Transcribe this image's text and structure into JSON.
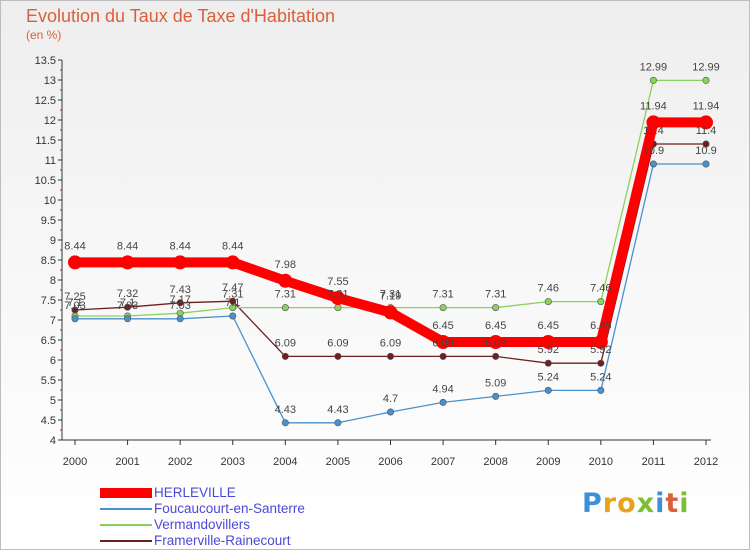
{
  "title": "Evolution du Taux de Taxe d'Habitation",
  "unit": "(en %)",
  "logo": {
    "letters": [
      "P",
      "r",
      "o",
      "x",
      "i",
      "t",
      "i"
    ],
    "colors": [
      "#3c8fd8",
      "#e9a21c",
      "#e9a21c",
      "#7bbf32",
      "#3c8fd8",
      "#d9603a",
      "#7bbf32"
    ]
  },
  "chart_data": {
    "type": "line",
    "x": [
      "2000",
      "2001",
      "2002",
      "2003",
      "2004",
      "2005",
      "2006",
      "2007",
      "2008",
      "2009",
      "2010",
      "2011",
      "2012"
    ],
    "ylim": [
      4,
      13.5
    ],
    "yticks": [
      "4",
      "4.5",
      "5",
      "5.5",
      "6",
      "6.5",
      "7",
      "7.5",
      "8",
      "8.5",
      "9",
      "9.5",
      "10",
      "10.5",
      "11",
      "11.5",
      "12",
      "12.5",
      "13",
      "13.5"
    ],
    "grid": false,
    "legend_position": "bottom-left",
    "series": [
      {
        "name": "HERLEVILLE",
        "color": "#ff0000",
        "values": [
          8.44,
          8.44,
          8.44,
          8.44,
          7.98,
          7.55,
          7.19,
          6.45,
          6.45,
          6.45,
          6.45,
          11.94,
          11.94
        ],
        "labels": [
          "8.44",
          "8.44",
          "8.44",
          "8.44",
          "7.98",
          "7.55",
          "7.19",
          "6.45",
          "6.45",
          "6.45",
          "6.45",
          "11.94",
          "11.94"
        ]
      },
      {
        "name": "Foucaucourt-en-Santerre",
        "color": "#4a90cc",
        "values": [
          7.03,
          7.03,
          7.03,
          7.1,
          4.43,
          4.43,
          4.7,
          4.94,
          5.09,
          5.24,
          5.24,
          10.9,
          10.9
        ],
        "labels": [
          "7.03",
          "7.03",
          "7.03",
          "7.1",
          "4.43",
          "4.43",
          "4.7",
          "4.94",
          "5.09",
          "5.24",
          "5.24",
          "10.9",
          "10.9"
        ]
      },
      {
        "name": "Vermandovillers",
        "color": "#8ad35a",
        "values": [
          7.1,
          7.1,
          7.17,
          7.31,
          7.31,
          7.31,
          7.31,
          7.31,
          7.31,
          7.46,
          7.46,
          12.99,
          12.99
        ],
        "labels": [
          "7.1",
          "7.1",
          "7.17",
          "7.31",
          "7.31",
          "7.31",
          "7.31",
          "7.31",
          "7.31",
          "7.46",
          "7.46",
          "12.99",
          "12.99"
        ]
      },
      {
        "name": "Framerville-Rainecourt",
        "color": "#6e1f1f",
        "values": [
          7.25,
          7.32,
          7.43,
          7.47,
          6.09,
          6.09,
          6.09,
          6.09,
          6.09,
          5.92,
          5.92,
          11.4,
          11.4
        ],
        "labels": [
          "7.25",
          "7.32",
          "7.43",
          "7.47",
          "6.09",
          "6.09",
          "6.09",
          "6.09",
          "6.09",
          "5.92",
          "5.92",
          "11.4",
          "11.4"
        ]
      }
    ]
  }
}
